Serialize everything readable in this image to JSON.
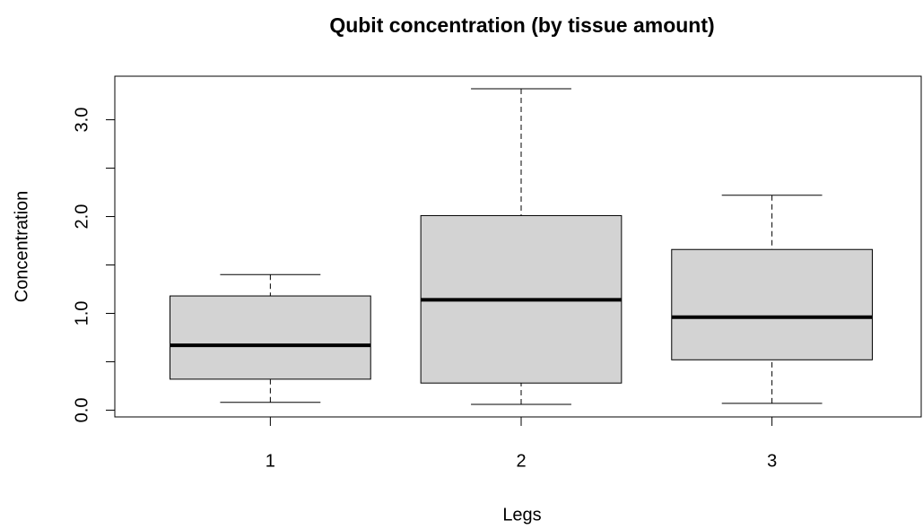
{
  "chart_data": {
    "type": "box",
    "title": "Qubit concentration (by tissue amount)",
    "xlabel": "Legs",
    "ylabel": "Concentration",
    "categories": [
      "1",
      "2",
      "3"
    ],
    "color": "#d3d3d3",
    "boxes": [
      {
        "min": 0.08,
        "q1": 0.32,
        "median": 0.67,
        "q3": 1.18,
        "max": 1.4
      },
      {
        "min": 0.06,
        "q1": 0.28,
        "median": 1.14,
        "q3": 2.01,
        "max": 3.32
      },
      {
        "min": 0.07,
        "q1": 0.52,
        "median": 0.96,
        "q3": 1.66,
        "max": 2.22
      }
    ],
    "ylim": [
      -0.07,
      3.45
    ],
    "yticks": [
      {
        "value": 0,
        "label": "0.0"
      },
      {
        "value": 0.5,
        "label": null
      },
      {
        "value": 1,
        "label": "1.0"
      },
      {
        "value": 1.5,
        "label": null
      },
      {
        "value": 2,
        "label": "2.0"
      },
      {
        "value": 2.5,
        "label": null
      },
      {
        "value": 3,
        "label": "3.0"
      }
    ]
  }
}
